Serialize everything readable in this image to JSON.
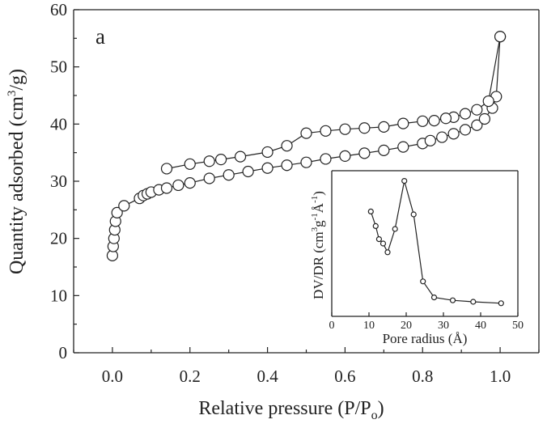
{
  "chart_data": [
    {
      "type": "scatter",
      "panel_label": "a",
      "xlabel": "Relative pressure (P/P",
      "xlabel_sub": "o",
      "xlabel_end": ")",
      "ylabel": "Quantity adsorbed (cm",
      "ylabel_sup": "3",
      "ylabel_end": "/g)",
      "xlim": [
        -0.1,
        1.1
      ],
      "ylim": [
        0,
        60
      ],
      "xticks": [
        0.0,
        0.2,
        0.4,
        0.6,
        0.8,
        1.0
      ],
      "xtick_labels": [
        "0.0",
        "0.2",
        "0.4",
        "0.6",
        "0.8",
        "1.0"
      ],
      "yticks": [
        0,
        10,
        20,
        30,
        40,
        50,
        60
      ],
      "ytick_labels": [
        "0",
        "10",
        "20",
        "30",
        "40",
        "50",
        "60"
      ],
      "series": [
        {
          "role": "adsorption",
          "x": [
            0.0,
            0.002,
            0.004,
            0.006,
            0.008,
            0.012,
            0.03,
            0.07,
            0.08,
            0.09,
            0.1,
            0.12,
            0.14,
            0.17,
            0.2,
            0.25,
            0.3,
            0.35,
            0.4,
            0.45,
            0.5,
            0.55,
            0.6,
            0.65,
            0.7,
            0.75,
            0.8,
            0.82,
            0.85,
            0.88,
            0.91,
            0.94,
            0.96,
            0.98,
            0.99,
            1.0
          ],
          "y": [
            17,
            18.6,
            20,
            21.5,
            23,
            24.5,
            25.7,
            27,
            27.5,
            27.8,
            28.1,
            28.5,
            28.8,
            29.3,
            29.7,
            30.5,
            31.1,
            31.7,
            32.3,
            32.8,
            33.3,
            33.9,
            34.4,
            34.9,
            35.4,
            36.0,
            36.6,
            37.1,
            37.7,
            38.3,
            39.0,
            39.8,
            40.9,
            42.8,
            44.8,
            55.3
          ]
        },
        {
          "role": "desorption",
          "x": [
            1.0,
            0.97,
            0.94,
            0.91,
            0.88,
            0.86,
            0.83,
            0.8,
            0.75,
            0.7,
            0.65,
            0.6,
            0.55,
            0.5,
            0.45,
            0.4,
            0.33,
            0.28,
            0.25,
            0.2,
            0.14
          ],
          "y": [
            55.3,
            44.0,
            42.5,
            41.8,
            41.2,
            41.0,
            40.6,
            40.5,
            40.1,
            39.5,
            39.3,
            39.1,
            38.8,
            38.4,
            36.2,
            35.1,
            34.3,
            33.8,
            33.5,
            33.0,
            32.2
          ]
        }
      ]
    },
    {
      "type": "line",
      "role": "inset",
      "xlabel": "Pore radius (Å)",
      "ylabel": "DV/DR (cm",
      "ylabel_sup1": "3",
      "ylabel_mid": "g",
      "ylabel_sup2": "-1",
      "ylabel_mid2": "Å",
      "ylabel_sup3": "-1",
      "ylabel_end": ")",
      "xlim": [
        0,
        50
      ],
      "xticks": [
        0,
        10,
        20,
        30,
        40,
        50
      ],
      "xtick_labels": [
        "0",
        "10",
        "20",
        "30",
        "40",
        "50"
      ],
      "x": [
        10.5,
        11.8,
        12.7,
        13.8,
        15.0,
        17.0,
        19.5,
        22.0,
        24.5,
        27.5,
        32.5,
        38.0,
        45.5
      ],
      "y": [
        0.72,
        0.62,
        0.53,
        0.5,
        0.44,
        0.6,
        0.93,
        0.7,
        0.24,
        0.13,
        0.11,
        0.1,
        0.09
      ]
    }
  ]
}
